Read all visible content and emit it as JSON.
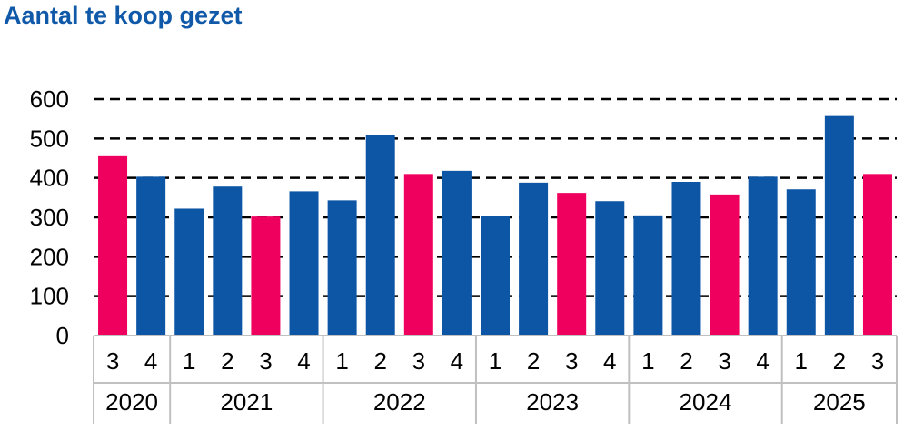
{
  "chart_data": {
    "type": "bar",
    "title": "Aantal te koop gezet",
    "xlabel": "",
    "ylabel": "",
    "ylim": [
      0,
      600
    ],
    "yticks": [
      0,
      100,
      200,
      300,
      400,
      500,
      600
    ],
    "grid": "horizontal dashed",
    "legend": "none",
    "categories": [
      "3",
      "4",
      "1",
      "2",
      "3",
      "4",
      "1",
      "2",
      "3",
      "4",
      "1",
      "2",
      "3",
      "4",
      "1",
      "2",
      "3",
      "4",
      "1",
      "2",
      "3"
    ],
    "groups": [
      {
        "label": "2020",
        "count": 2
      },
      {
        "label": "2021",
        "count": 4
      },
      {
        "label": "2022",
        "count": 4
      },
      {
        "label": "2023",
        "count": 4
      },
      {
        "label": "2024",
        "count": 4
      },
      {
        "label": "2025",
        "count": 3
      }
    ],
    "values": [
      455,
      403,
      322,
      378,
      302,
      366,
      343,
      510,
      410,
      418,
      303,
      388,
      362,
      341,
      305,
      390,
      358,
      403,
      371,
      557,
      410
    ],
    "highlight": [
      true,
      false,
      false,
      false,
      true,
      false,
      false,
      false,
      true,
      false,
      false,
      false,
      true,
      false,
      false,
      false,
      true,
      false,
      false,
      false,
      true
    ],
    "colors": {
      "bar": "#0d56a6",
      "highlight": "#f0005e",
      "title": "#1059a9",
      "axis": "#c0c0c0",
      "grid": "#000000"
    }
  }
}
